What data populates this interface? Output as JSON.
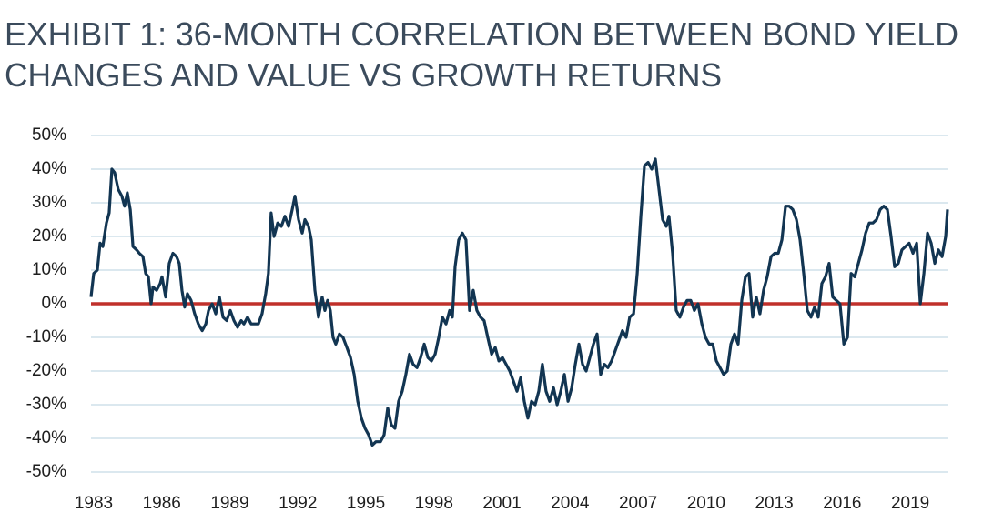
{
  "chart_data": {
    "type": "line",
    "title": [
      "EXHIBIT 1: 36-MONTH CORRELATION BETWEEN BOND YIELD",
      "CHANGES AND VALUE VS GROWTH RETURNS"
    ],
    "x": [
      1982.88,
      1983.0,
      1983.16,
      1983.28,
      1983.4,
      1983.56,
      1983.68,
      1983.8,
      1983.92,
      1984.08,
      1984.24,
      1984.36,
      1984.48,
      1984.61,
      1984.73,
      1984.89,
      1985.01,
      1985.17,
      1985.29,
      1985.41,
      1985.53,
      1985.61,
      1985.77,
      1985.93,
      1986.01,
      1986.17,
      1986.33,
      1986.49,
      1986.65,
      1986.77,
      1986.89,
      1987.01,
      1987.13,
      1987.29,
      1987.45,
      1987.61,
      1987.78,
      1987.94,
      1988.06,
      1988.22,
      1988.38,
      1988.54,
      1988.7,
      1988.86,
      1989.02,
      1989.18,
      1989.34,
      1989.5,
      1989.62,
      1989.78,
      1989.94,
      1990.1,
      1990.26,
      1990.42,
      1990.58,
      1990.7,
      1990.82,
      1990.95,
      1991.11,
      1991.27,
      1991.43,
      1991.59,
      1991.75,
      1991.87,
      1992.03,
      1992.19,
      1992.31,
      1992.47,
      1992.59,
      1992.75,
      1992.91,
      1993.07,
      1993.19,
      1993.31,
      1993.43,
      1993.55,
      1993.67,
      1993.83,
      1993.99,
      1994.16,
      1994.32,
      1994.48,
      1994.64,
      1994.8,
      1994.96,
      1995.12,
      1995.28,
      1995.44,
      1995.64,
      1995.8,
      1995.96,
      1996.12,
      1996.28,
      1996.44,
      1996.6,
      1996.76,
      1996.92,
      1997.08,
      1997.25,
      1997.41,
      1997.57,
      1997.73,
      1997.89,
      1998.05,
      1998.21,
      1998.37,
      1998.53,
      1998.69,
      1998.81,
      1998.93,
      1999.09,
      1999.25,
      1999.41,
      1999.57,
      1999.73,
      1999.89,
      2000.05,
      2000.21,
      2000.37,
      2000.54,
      2000.7,
      2000.86,
      2001.02,
      2001.18,
      2001.34,
      2001.5,
      2001.66,
      2001.82,
      2001.98,
      2002.14,
      2002.3,
      2002.46,
      2002.62,
      2002.78,
      2002.94,
      2003.1,
      2003.27,
      2003.43,
      2003.59,
      2003.75,
      2003.91,
      2004.07,
      2004.23,
      2004.39,
      2004.55,
      2004.71,
      2004.87,
      2005.03,
      2005.19,
      2005.35,
      2005.51,
      2005.67,
      2005.83,
      2005.99,
      2006.15,
      2006.31,
      2006.47,
      2006.63,
      2006.8,
      2006.96,
      2007.12,
      2007.28,
      2007.44,
      2007.6,
      2007.76,
      2007.92,
      2008.08,
      2008.24,
      2008.36,
      2008.52,
      2008.68,
      2008.84,
      2009.0,
      2009.16,
      2009.32,
      2009.48,
      2009.64,
      2009.81,
      2009.97,
      2010.13,
      2010.29,
      2010.45,
      2010.61,
      2010.77,
      2010.93,
      2011.09,
      2011.25,
      2011.41,
      2011.57,
      2011.73,
      2011.89,
      2012.05,
      2012.21,
      2012.37,
      2012.53,
      2012.69,
      2012.86,
      2013.02,
      2013.18,
      2013.34,
      2013.5,
      2013.66,
      2013.82,
      2013.98,
      2014.14,
      2014.3,
      2014.46,
      2014.62,
      2014.78,
      2014.94,
      2015.1,
      2015.26,
      2015.42,
      2015.58,
      2015.74,
      2015.9,
      2016.07,
      2016.23,
      2016.39,
      2016.55,
      2016.71,
      2016.87,
      2017.03,
      2017.19,
      2017.35,
      2017.51,
      2017.67,
      2017.83,
      2017.99,
      2018.15,
      2018.31,
      2018.47,
      2018.63,
      2018.79,
      2018.95,
      2019.12,
      2019.28,
      2019.44,
      2019.6,
      2019.76,
      2019.92,
      2020.08,
      2020.24,
      2020.4,
      2020.56,
      2020.64
    ],
    "values": [
      2,
      9,
      10,
      18,
      17,
      24,
      27,
      40,
      39,
      34,
      32,
      29,
      33,
      28,
      17,
      16,
      15,
      14,
      9,
      8,
      0,
      5,
      4,
      6,
      8,
      2,
      12,
      15,
      14,
      12,
      4,
      -1,
      3,
      1,
      -3,
      -6,
      -8,
      -6,
      -2,
      0,
      -3,
      2,
      -4,
      -5,
      -2,
      -5,
      -7,
      -5,
      -6,
      -4,
      -6,
      -6,
      -6,
      -3,
      3,
      9,
      27,
      20,
      24,
      23,
      26,
      23,
      28,
      32,
      25,
      21,
      25,
      23,
      19,
      4,
      -4,
      2,
      -2,
      1,
      -2,
      -10,
      -12,
      -9,
      -10,
      -13,
      -16,
      -21,
      -29,
      -34,
      -37,
      -39,
      -42,
      -41,
      -41,
      -39,
      -31,
      -36,
      -37,
      -29,
      -26,
      -21,
      -15,
      -18,
      -19,
      -16,
      -12,
      -16,
      -17,
      -15,
      -10,
      -4,
      -6,
      -2,
      -4,
      11,
      19,
      21,
      19,
      -2,
      4,
      -2,
      -4,
      -5,
      -10,
      -15,
      -13,
      -17,
      -16,
      -18,
      -20,
      -23,
      -26,
      -22,
      -29,
      -34,
      -29,
      -30,
      -26,
      -18,
      -26,
      -29,
      -25,
      -30,
      -26,
      -21,
      -29,
      -25,
      -18,
      -12,
      -18,
      -20,
      -16,
      -12,
      -9,
      -21,
      -18,
      -19,
      -17,
      -14,
      -11,
      -8,
      -10,
      -4,
      -3,
      9,
      26,
      41,
      42,
      40,
      43,
      34,
      25,
      23,
      26,
      15,
      -2,
      -4,
      -1,
      1,
      1,
      -2,
      0,
      -6,
      -10,
      -12,
      -12,
      -17,
      -19,
      -21,
      -20,
      -12,
      -9,
      -12,
      1,
      8,
      9,
      -4,
      2,
      -3,
      4,
      8,
      14,
      15,
      15,
      19,
      29,
      29,
      28,
      25,
      19,
      9,
      -2,
      -4,
      -1,
      -4,
      6,
      8,
      12,
      2,
      1,
      0,
      -12,
      -10,
      9,
      8,
      12,
      16,
      21,
      24,
      24,
      25,
      28,
      29,
      28,
      20,
      11,
      12,
      16,
      17,
      18,
      15,
      18,
      0,
      9,
      21,
      18,
      12,
      16,
      14,
      20,
      28
    ],
    "color": "#123552",
    "hline": {
      "y": 0,
      "color": "#c0302b"
    },
    "xlim": [
      1982.88,
      2020.68
    ],
    "xticks": [
      1983,
      1986,
      1989,
      1992,
      1995,
      1998,
      2001,
      2004,
      2007,
      2010,
      2013,
      2016,
      2019
    ],
    "ylim": [
      -50,
      50
    ],
    "yticks": [
      {
        "value": -50,
        "label": "-50%"
      },
      {
        "value": -40,
        "label": "-40%"
      },
      {
        "value": -30,
        "label": "-30%"
      },
      {
        "value": -20,
        "label": "-20%"
      },
      {
        "value": -10,
        "label": "-10%"
      },
      {
        "value": 0,
        "label": "0%"
      },
      {
        "value": 10,
        "label": "10%"
      },
      {
        "value": 20,
        "label": "20%"
      },
      {
        "value": 30,
        "label": "30%"
      },
      {
        "value": 40,
        "label": "40%"
      },
      {
        "value": 50,
        "label": "50%"
      }
    ],
    "grid": true
  }
}
